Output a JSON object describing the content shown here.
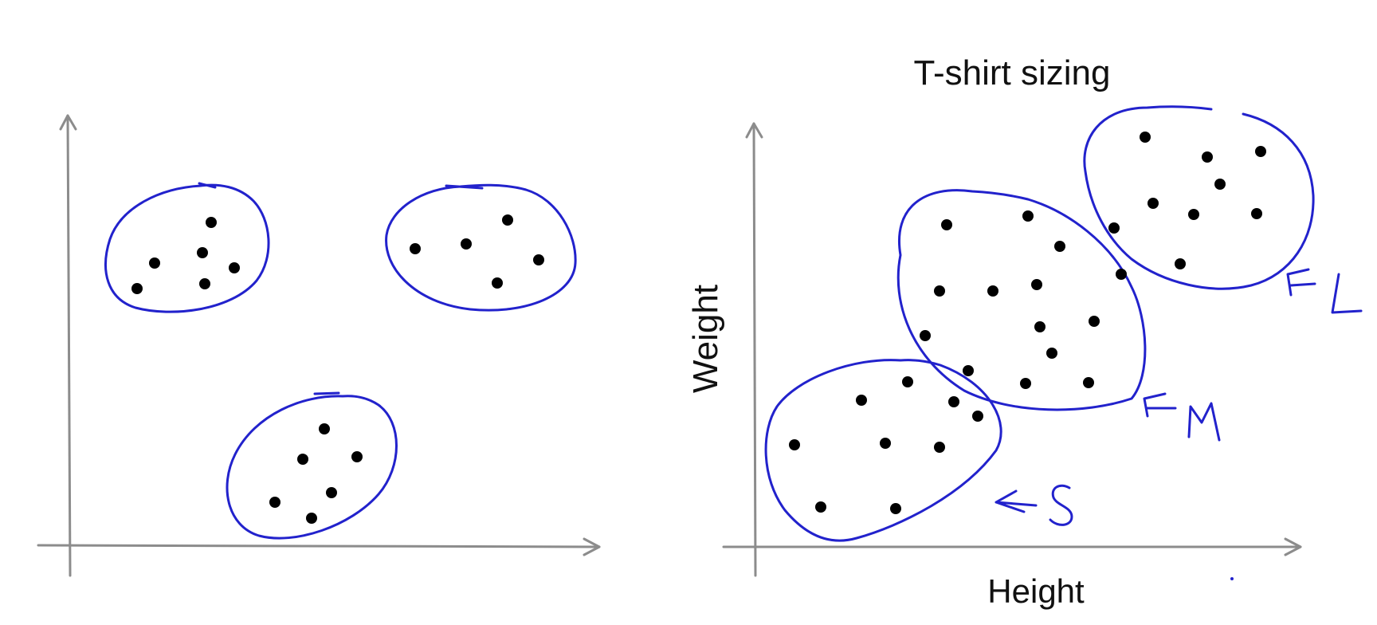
{
  "colors": {
    "ink": "#2222cc",
    "axis": "#8c8c8c",
    "dot": "#000000",
    "text": "#111111"
  },
  "right_panel": {
    "title": "T-shirt sizing",
    "x_label": "Height",
    "y_label": "Weight",
    "size_markers": [
      "S",
      "M",
      "L"
    ]
  }
}
